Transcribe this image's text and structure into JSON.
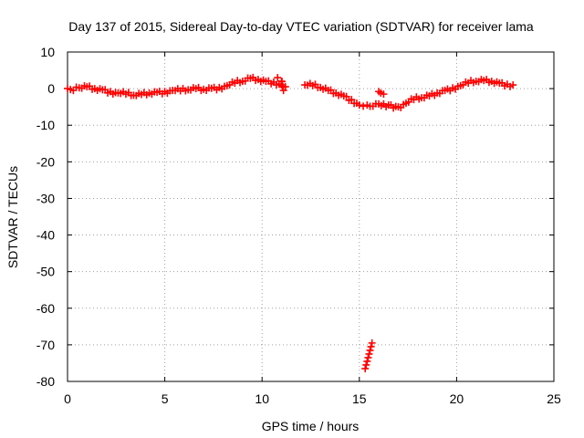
{
  "chart_data": {
    "type": "scatter",
    "title": "Day 137 of 2015, Sidereal Day-to-day VTEC variation (SDTVAR) for receiver lama",
    "xlabel": "GPS time / hours",
    "ylabel": "SDTVAR / TECUs",
    "xlim": [
      0,
      25
    ],
    "ylim": [
      -80,
      10
    ],
    "xticks": [
      0,
      5,
      10,
      15,
      20,
      25
    ],
    "yticks": [
      10,
      0,
      -10,
      -20,
      -30,
      -40,
      -50,
      -60,
      -70,
      -80
    ],
    "grid": true,
    "marker": "plus",
    "color": "#ff0000",
    "series": [
      {
        "name": "segment-1",
        "x": [
          0.0,
          0.3,
          0.6,
          1.0,
          1.4,
          1.8,
          2.2,
          2.6,
          3.0,
          3.4,
          3.8,
          4.2,
          4.6,
          5.0,
          5.4,
          5.8,
          6.2,
          6.6,
          7.0,
          7.4,
          7.8,
          8.2,
          8.6,
          9.0,
          9.4,
          9.8,
          10.2,
          10.6,
          11.0
        ],
        "y": [
          0.0,
          -0.5,
          0.2,
          0.5,
          0.0,
          -0.3,
          -0.8,
          -1.2,
          -1.5,
          -1.8,
          -1.6,
          -1.2,
          -1.0,
          -0.8,
          -0.5,
          -0.6,
          -0.3,
          0.0,
          -0.2,
          0.1,
          0.3,
          0.8,
          1.5,
          2.0,
          2.8,
          2.5,
          2.0,
          1.8,
          1.0
        ]
      },
      {
        "name": "segment-2",
        "x": [
          10.8,
          11.0,
          11.1,
          11.2
        ],
        "y": [
          3.0,
          2.0,
          -0.5,
          0.5
        ]
      },
      {
        "name": "segment-3",
        "x": [
          12.2,
          12.6,
          13.0,
          13.4,
          13.8,
          14.2,
          14.6,
          15.0,
          15.2,
          15.4,
          15.7,
          16.0,
          16.5,
          17.0,
          17.4,
          17.8,
          18.2,
          18.6,
          19.0,
          19.4,
          19.8,
          20.2,
          20.6,
          21.0,
          21.4,
          21.8,
          22.2,
          22.6,
          22.9
        ],
        "y": [
          1.0,
          0.8,
          0.3,
          -0.5,
          -1.2,
          -2.0,
          -3.0,
          -4.5,
          -4.8,
          -4.5,
          -4.8,
          -4.2,
          -4.5,
          -5.0,
          -4.0,
          -3.0,
          -2.5,
          -2.0,
          -1.2,
          -0.5,
          0.2,
          0.8,
          1.5,
          2.0,
          2.2,
          2.0,
          1.5,
          1.2,
          1.0
        ]
      },
      {
        "name": "segment-4",
        "x": [
          16.0,
          16.1,
          16.25
        ],
        "y": [
          -0.8,
          -1.2,
          -1.5
        ]
      },
      {
        "name": "segment-5",
        "x": [
          15.3,
          15.35,
          15.4,
          15.45,
          15.5,
          15.55,
          15.6,
          15.65
        ],
        "y": [
          -76.5,
          -75.5,
          -74.5,
          -73.5,
          -72.5,
          -71.5,
          -70.5,
          -69.5
        ]
      }
    ]
  }
}
